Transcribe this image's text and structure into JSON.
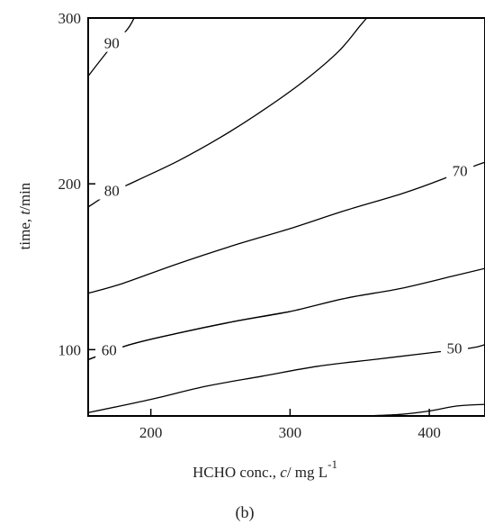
{
  "chart_data": {
    "type": "contour",
    "xlabel": {
      "prefix": "HCHO   conc., ",
      "var": "c",
      "unit": "/ mg L",
      "sup": "-1"
    },
    "ylabel": {
      "prefix": "time, ",
      "var": "t",
      "unit": "/min"
    },
    "caption": "(b)",
    "xlim": [
      155,
      440
    ],
    "ylim": [
      60,
      300
    ],
    "xticks": [
      200,
      300,
      400
    ],
    "yticks": [
      100,
      200,
      300
    ],
    "contours": [
      {
        "level": "90",
        "points": [
          [
            155,
            265
          ],
          [
            170,
            281
          ],
          [
            183,
            293
          ],
          [
            188,
            300
          ]
        ],
        "label": {
          "x": 172,
          "y": 285
        }
      },
      {
        "level": "80",
        "points": [
          [
            155,
            186
          ],
          [
            170,
            194
          ],
          [
            190,
            202
          ],
          [
            220,
            214
          ],
          [
            250,
            228
          ],
          [
            280,
            244
          ],
          [
            310,
            262
          ],
          [
            335,
            280
          ],
          [
            350,
            295
          ],
          [
            355,
            300
          ]
        ],
        "label": {
          "x": 172,
          "y": 196
        }
      },
      {
        "level": "70",
        "points": [
          [
            155,
            134
          ],
          [
            180,
            140
          ],
          [
            220,
            152
          ],
          [
            260,
            163
          ],
          [
            300,
            173
          ],
          [
            340,
            184
          ],
          [
            380,
            194
          ],
          [
            410,
            203
          ],
          [
            430,
            210
          ],
          [
            440,
            213
          ]
        ],
        "label": {
          "x": 422,
          "y": 208
        }
      },
      {
        "level": "",
        "points": [
          [
            155,
            94
          ],
          [
            185,
            103
          ],
          [
            220,
            110
          ],
          [
            260,
            117
          ],
          [
            300,
            123
          ],
          [
            340,
            131
          ],
          [
            380,
            137
          ],
          [
            420,
            145
          ],
          [
            440,
            149
          ]
        ],
        "label": null
      },
      {
        "level": "60",
        "points": [
          [
            155,
            94
          ],
          [
            185,
            103
          ],
          [
            220,
            110
          ],
          [
            260,
            117
          ],
          [
            300,
            123
          ]
        ],
        "label": {
          "x": 170,
          "y": 100
        }
      },
      {
        "level": "50",
        "points": [
          [
            155,
            62
          ],
          [
            200,
            70
          ],
          [
            240,
            78
          ],
          [
            280,
            84
          ],
          [
            320,
            90
          ],
          [
            360,
            94
          ],
          [
            400,
            98
          ],
          [
            430,
            101
          ],
          [
            440,
            103
          ]
        ],
        "label": {
          "x": 418,
          "y": 101
        }
      },
      {
        "level": "",
        "points": [
          [
            355,
            60
          ],
          [
            380,
            61
          ],
          [
            400,
            63
          ],
          [
            420,
            66
          ],
          [
            440,
            67
          ]
        ],
        "label": null
      }
    ]
  }
}
